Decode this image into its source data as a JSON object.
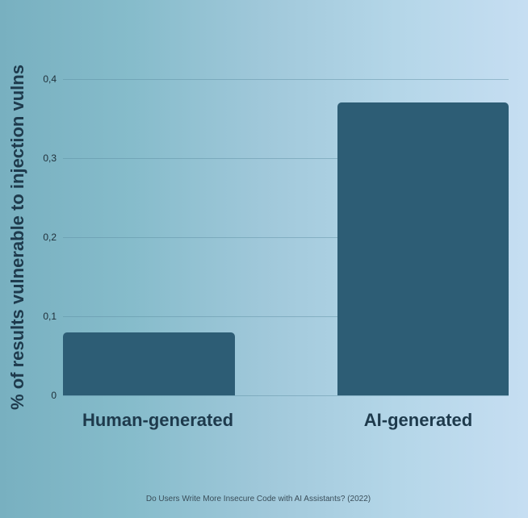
{
  "chart_data": {
    "type": "bar",
    "title": "",
    "categories": [
      "Human-generated",
      "AI-generated"
    ],
    "values": [
      0.08,
      0.37
    ],
    "xlabel": "",
    "ylabel": "% of results vulnerable to injection vulns",
    "ylim": [
      0,
      0.4
    ],
    "yticks": [
      "0",
      "0,1",
      "0,2",
      "0,3",
      "0,4"
    ],
    "grid": true,
    "legend": null,
    "bar_color": "#2d5d75",
    "source": "Do Users Write More Insecure Code with AI Assistants? (2022)"
  },
  "colors": {
    "bar": "#2d5d75",
    "label": "#1e3a4c",
    "bg_left": "#78b0c0",
    "bg_right": "#c6def2"
  }
}
